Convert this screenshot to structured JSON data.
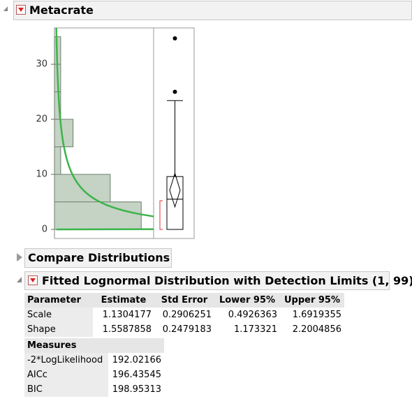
{
  "header": {
    "title": "Metacrate"
  },
  "chart_data": [
    {
      "type": "histogram",
      "bins": [
        0,
        5,
        10,
        15,
        20,
        25,
        30,
        35
      ],
      "values": [
        14,
        9,
        1,
        3,
        1,
        1,
        1
      ],
      "color": "#c4d3c4",
      "curve_color": "#3cb44b",
      "ylim": [
        -1.65,
        36.6
      ],
      "yticks": [
        0,
        10,
        20,
        30
      ],
      "xlim": [
        0,
        16
      ]
    },
    {
      "type": "box",
      "ylim": [
        -1.65,
        36.6
      ],
      "whisker_low": 0,
      "q1": 0,
      "median": 5.5,
      "q3": 9.6,
      "whisker_high": 23.4,
      "outliers": [
        25,
        34.7
      ],
      "mean": 7.1,
      "mean_ci": [
        4.1,
        10.2
      ],
      "shortest_half": [
        0,
        5.2
      ]
    }
  ],
  "compare": {
    "title": "Compare Distributions"
  },
  "fitted": {
    "title": "Fitted Lognormal Distribution with Detection Limits (1, 99)",
    "headers": [
      "Parameter",
      "Estimate",
      "Std Error",
      "Lower 95%",
      "Upper 95%"
    ],
    "rows": [
      [
        "Scale",
        "1.1304177",
        "0.2906251",
        "0.4926363",
        "1.6919355"
      ],
      [
        "Shape",
        "1.5587858",
        "0.2479183",
        "1.173321",
        "2.2004856"
      ]
    ]
  },
  "measures": {
    "header": "Measures",
    "rows": [
      [
        "-2*LogLikelihood",
        "192.02166"
      ],
      [
        "AICc",
        "196.43545"
      ],
      [
        "BIC",
        "198.95313"
      ]
    ]
  }
}
